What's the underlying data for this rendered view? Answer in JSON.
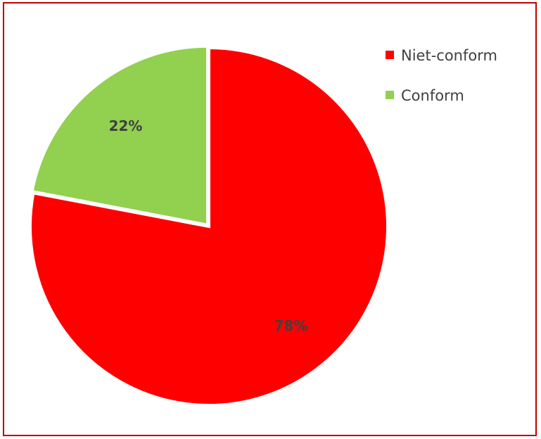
{
  "chart_data": {
    "type": "pie",
    "categories": [
      "Niet-conform",
      "Conform"
    ],
    "values": [
      78,
      22
    ],
    "value_labels": [
      "78%",
      "22%"
    ],
    "colors": [
      "#ff0000",
      "#92d050"
    ],
    "legend_position": "top-right"
  },
  "colors": {
    "border": "#c00000",
    "label_text": "#404040",
    "separator": "#ffffff"
  }
}
